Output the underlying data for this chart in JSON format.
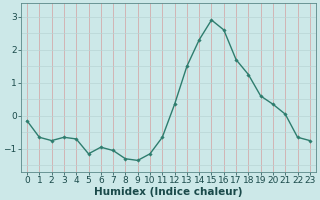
{
  "x": [
    0,
    1,
    2,
    3,
    4,
    5,
    6,
    7,
    8,
    9,
    10,
    11,
    12,
    13,
    14,
    15,
    16,
    17,
    18,
    19,
    20,
    21,
    22,
    23
  ],
  "y": [
    -0.15,
    -0.65,
    -0.75,
    -0.65,
    -0.7,
    -1.15,
    -0.95,
    -1.05,
    -1.3,
    -1.35,
    -1.15,
    -0.65,
    0.35,
    1.5,
    2.3,
    2.9,
    2.6,
    1.7,
    1.25,
    0.6,
    0.35,
    0.05,
    -0.65,
    -0.75
  ],
  "line_color": "#2e7d6e",
  "marker": "D",
  "marker_size": 1.8,
  "bg_color": "#cce8e8",
  "grid_color_x": "#d4a0a0",
  "grid_color_y": "#b8d4d4",
  "xlabel": "Humidex (Indice chaleur)",
  "xlabel_fontsize": 7.5,
  "ylim": [
    -1.7,
    3.4
  ],
  "xlim": [
    -0.5,
    23.5
  ],
  "yticks": [
    -1,
    0,
    1,
    2,
    3
  ],
  "xticks": [
    0,
    1,
    2,
    3,
    4,
    5,
    6,
    7,
    8,
    9,
    10,
    11,
    12,
    13,
    14,
    15,
    16,
    17,
    18,
    19,
    20,
    21,
    22,
    23
  ],
  "tick_fontsize": 6.5,
  "line_width": 1.0
}
